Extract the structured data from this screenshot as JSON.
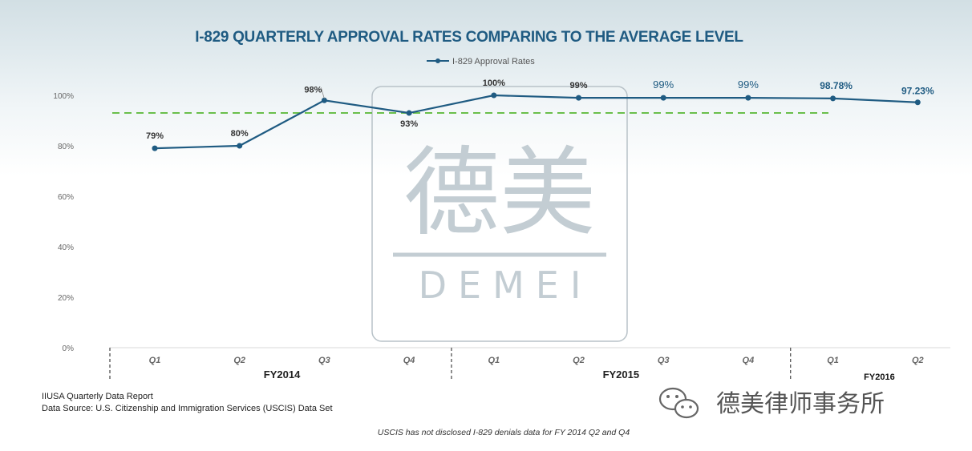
{
  "chart_data": {
    "type": "line",
    "title": "I-829 QUARTERLY APPROVAL RATES COMPARING TO THE AVERAGE LEVEL",
    "legend": {
      "position": "top-center"
    },
    "series": [
      {
        "name": "I-829 Approval Rates",
        "color": "#1f5b82",
        "values": [
          79,
          80,
          98,
          93,
          100,
          99,
          99,
          99,
          98.78,
          97.23
        ],
        "labels": [
          "79%",
          "80%",
          "98%",
          "93%",
          "100%",
          "99%",
          "99%",
          "99%",
          "98.78%",
          "97.23%"
        ]
      }
    ],
    "x": [
      "Q1",
      "Q2",
      "Q3",
      "Q4",
      "Q1",
      "Q2",
      "Q3",
      "Q4",
      "Q1",
      "Q2"
    ],
    "fiscal_years": [
      {
        "label": "FY2014",
        "start": 0,
        "end": 3
      },
      {
        "label": "FY2015",
        "start": 4,
        "end": 7
      },
      {
        "label": "FY2016",
        "start": 8,
        "end": 9
      }
    ],
    "average_line": {
      "value": 93,
      "color": "#6abf4b",
      "style": "dashed"
    },
    "ylim": [
      0,
      100
    ],
    "yticks": [
      0,
      20,
      40,
      60,
      80,
      100
    ],
    "ytick_labels": [
      "0%",
      "20%",
      "40%",
      "60%",
      "80%",
      "100%"
    ],
    "grid": false
  },
  "sources": {
    "line1": "IIUSA Quarterly Data Report",
    "line2": "Data Source: U.S. Citizenship and Immigration Services (USCIS) Data Set"
  },
  "note": "USCIS has not disclosed I-829 denials data for FY 2014 Q2 and Q4",
  "watermark": {
    "cjk": "德美",
    "latin": "DEMEI"
  },
  "brand": {
    "text": "德美律师事务所",
    "icon": "wechat-icon"
  }
}
